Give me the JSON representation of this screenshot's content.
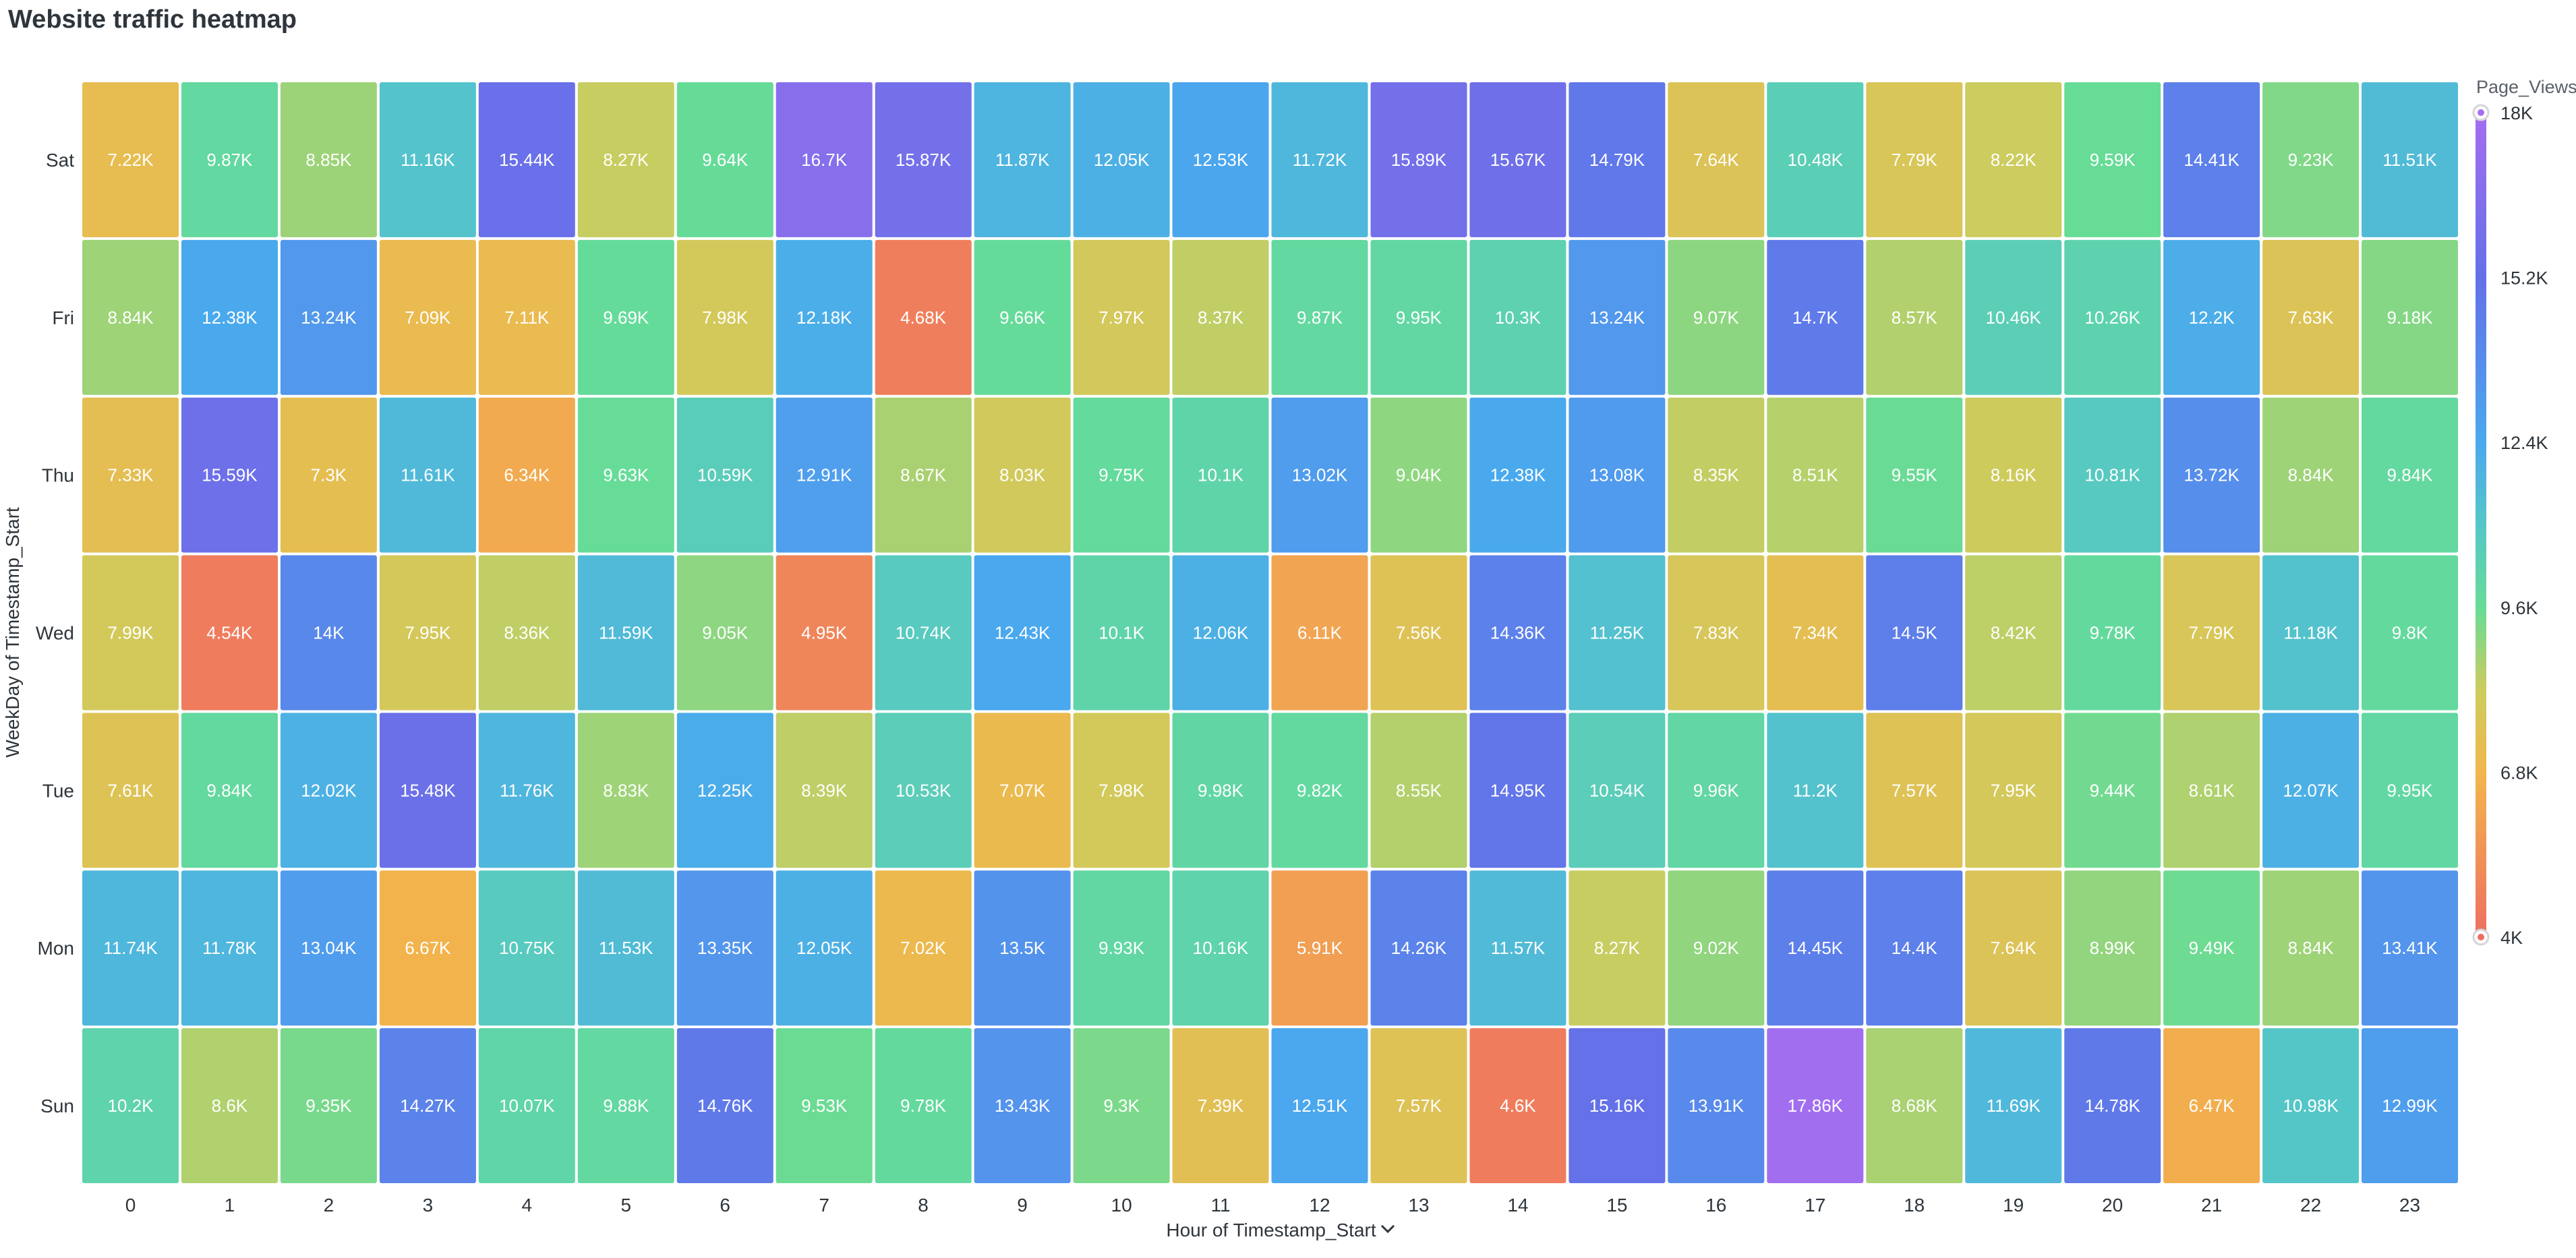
{
  "title": "Website traffic heatmap",
  "chart_data": {
    "type": "heatmap",
    "title": "Website traffic heatmap",
    "xlabel": "Hour of Timestamp_Start",
    "ylabel": "WeekDay of Timestamp_Start",
    "x": [
      "0",
      "1",
      "2",
      "3",
      "4",
      "5",
      "6",
      "7",
      "8",
      "9",
      "10",
      "11",
      "12",
      "13",
      "14",
      "15",
      "16",
      "17",
      "18",
      "19",
      "20",
      "21",
      "22",
      "23"
    ],
    "y": [
      "Sat",
      "Fri",
      "Thu",
      "Wed",
      "Tue",
      "Mon",
      "Sun"
    ],
    "values": [
      [
        7.22,
        9.87,
        8.85,
        11.16,
        15.44,
        8.27,
        9.64,
        16.7,
        15.87,
        11.87,
        12.05,
        12.53,
        11.72,
        15.89,
        15.67,
        14.79,
        7.64,
        10.48,
        7.79,
        8.22,
        9.59,
        14.41,
        9.23,
        11.51
      ],
      [
        8.84,
        12.38,
        13.24,
        7.09,
        7.11,
        9.69,
        7.98,
        12.18,
        4.68,
        9.66,
        7.97,
        8.37,
        9.87,
        9.95,
        10.3,
        13.24,
        9.07,
        14.7,
        8.57,
        10.46,
        10.26,
        12.2,
        7.63,
        9.18
      ],
      [
        7.33,
        15.59,
        7.3,
        11.61,
        6.34,
        9.63,
        10.59,
        12.91,
        8.67,
        8.03,
        9.75,
        10.1,
        13.02,
        9.04,
        12.38,
        13.08,
        8.35,
        8.51,
        9.55,
        8.16,
        10.81,
        13.72,
        8.84,
        9.84
      ],
      [
        7.99,
        4.54,
        14,
        7.95,
        8.36,
        11.59,
        9.05,
        4.95,
        10.74,
        12.43,
        10.1,
        12.06,
        6.11,
        7.56,
        14.36,
        11.25,
        7.83,
        7.34,
        14.5,
        8.42,
        9.78,
        7.79,
        11.18,
        9.8
      ],
      [
        7.61,
        9.84,
        12.02,
        15.48,
        11.76,
        8.83,
        12.25,
        8.39,
        10.53,
        7.07,
        7.98,
        9.98,
        9.82,
        8.55,
        14.95,
        10.54,
        9.96,
        11.2,
        7.57,
        7.95,
        9.44,
        8.61,
        12.07,
        9.95
      ],
      [
        11.74,
        11.78,
        13.04,
        6.67,
        10.75,
        11.53,
        13.35,
        12.05,
        7.02,
        13.5,
        9.93,
        10.16,
        5.91,
        14.26,
        11.57,
        8.27,
        9.02,
        14.45,
        14.4,
        7.64,
        8.99,
        9.49,
        8.84,
        13.41
      ],
      [
        10.2,
        8.6,
        9.35,
        14.27,
        10.07,
        9.88,
        14.76,
        9.53,
        9.78,
        13.43,
        9.3,
        7.39,
        12.51,
        7.57,
        4.6,
        15.16,
        13.91,
        17.86,
        8.68,
        11.69,
        14.78,
        6.47,
        10.98,
        12.99
      ]
    ],
    "labels": [
      [
        "7.22K",
        "9.87K",
        "8.85K",
        "11.16K",
        "15.44K",
        "8.27K",
        "9.64K",
        "16.7K",
        "15.87K",
        "11.87K",
        "12.05K",
        "12.53K",
        "11.72K",
        "15.89K",
        "15.67K",
        "14.79K",
        "7.64K",
        "10.48K",
        "7.79K",
        "8.22K",
        "9.59K",
        "14.41K",
        "9.23K",
        "11.51K"
      ],
      [
        "8.84K",
        "12.38K",
        "13.24K",
        "7.09K",
        "7.11K",
        "9.69K",
        "7.98K",
        "12.18K",
        "4.68K",
        "9.66K",
        "7.97K",
        "8.37K",
        "9.87K",
        "9.95K",
        "10.3K",
        "13.24K",
        "9.07K",
        "14.7K",
        "8.57K",
        "10.46K",
        "10.26K",
        "12.2K",
        "7.63K",
        "9.18K"
      ],
      [
        "7.33K",
        "15.59K",
        "7.3K",
        "11.61K",
        "6.34K",
        "9.63K",
        "10.59K",
        "12.91K",
        "8.67K",
        "8.03K",
        "9.75K",
        "10.1K",
        "13.02K",
        "9.04K",
        "12.38K",
        "13.08K",
        "8.35K",
        "8.51K",
        "9.55K",
        "8.16K",
        "10.81K",
        "13.72K",
        "8.84K",
        "9.84K"
      ],
      [
        "7.99K",
        "4.54K",
        "14K",
        "7.95K",
        "8.36K",
        "11.59K",
        "9.05K",
        "4.95K",
        "10.74K",
        "12.43K",
        "10.1K",
        "12.06K",
        "6.11K",
        "7.56K",
        "14.36K",
        "11.25K",
        "7.83K",
        "7.34K",
        "14.5K",
        "8.42K",
        "9.78K",
        "7.79K",
        "11.18K",
        "9.8K"
      ],
      [
        "7.61K",
        "9.84K",
        "12.02K",
        "15.48K",
        "11.76K",
        "8.83K",
        "12.25K",
        "8.39K",
        "10.53K",
        "7.07K",
        "7.98K",
        "9.98K",
        "9.82K",
        "8.55K",
        "14.95K",
        "10.54K",
        "9.96K",
        "11.2K",
        "7.57K",
        "7.95K",
        "9.44K",
        "8.61K",
        "12.07K",
        "9.95K"
      ],
      [
        "11.74K",
        "11.78K",
        "13.04K",
        "6.67K",
        "10.75K",
        "11.53K",
        "13.35K",
        "12.05K",
        "7.02K",
        "13.5K",
        "9.93K",
        "10.16K",
        "5.91K",
        "14.26K",
        "11.57K",
        "8.27K",
        "9.02K",
        "14.45K",
        "14.4K",
        "7.64K",
        "8.99K",
        "9.49K",
        "8.84K",
        "13.41K"
      ],
      [
        "10.2K",
        "8.6K",
        "9.35K",
        "14.27K",
        "10.07K",
        "9.88K",
        "14.76K",
        "9.53K",
        "9.78K",
        "13.43K",
        "9.3K",
        "7.39K",
        "12.51K",
        "7.57K",
        "4.6K",
        "15.16K",
        "13.91K",
        "17.86K",
        "8.68K",
        "11.69K",
        "14.78K",
        "6.47K",
        "10.98K",
        "12.99K"
      ]
    ],
    "value_unit": "K",
    "legend": {
      "title": "Page_Views",
      "placement": "right",
      "min": 4,
      "max": 18,
      "ticks": [
        "18K",
        "15.2K",
        "12.4K",
        "9.6K",
        "6.8K",
        "4K"
      ],
      "tick_values": [
        18,
        15.2,
        12.4,
        9.6,
        6.8,
        4
      ]
    },
    "color_stops": [
      {
        "value": 4,
        "color": "#ee6e61"
      },
      {
        "value": 6.8,
        "color": "#f2b64c"
      },
      {
        "value": 8.2,
        "color": "#cdcc5e"
      },
      {
        "value": 9.6,
        "color": "#66dc97"
      },
      {
        "value": 11,
        "color": "#55c6c8"
      },
      {
        "value": 12.4,
        "color": "#4aa9ee"
      },
      {
        "value": 15.2,
        "color": "#6470e8"
      },
      {
        "value": 18,
        "color": "#a56ef0"
      }
    ],
    "grid": false,
    "xlabel_dropdown_icon": "chevron-down-icon"
  }
}
